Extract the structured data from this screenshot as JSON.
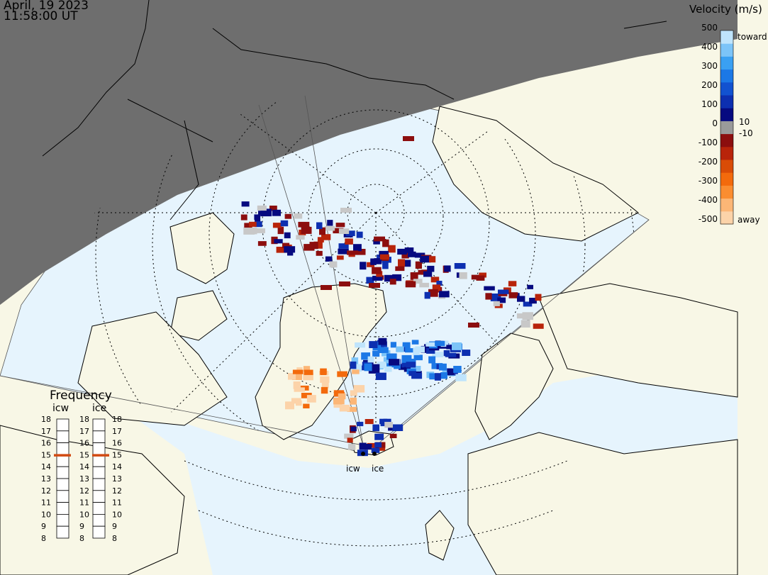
{
  "header": {
    "date": "April, 19 2023",
    "time": "11:58:00 UT"
  },
  "velocity_scale": {
    "title": "Velocity (m/s)",
    "ticks": [
      "500",
      "400",
      "300",
      "200",
      "100",
      "0",
      "-100",
      "-200",
      "-300",
      "-400",
      "-500"
    ],
    "inner_labels": [
      "10",
      "-10"
    ],
    "end_labels": {
      "top": "toward",
      "bottom": "away"
    },
    "colors": [
      "#fcd3a9",
      "#fcb676",
      "#fb8d30",
      "#f36a0c",
      "#d94c06",
      "#b8240a",
      "#8c0e0e",
      "#9a9a9a",
      "#060a80",
      "#0d2fb0",
      "#1252d0",
      "#1c78e6",
      "#3aa0f2",
      "#7cc4f8",
      "#bfe4fc"
    ]
  },
  "frequency_panel": {
    "title": "Frequency",
    "columns": [
      {
        "name": "icw",
        "selected": 15
      },
      {
        "name": "ice",
        "selected": 15
      }
    ],
    "levels": [
      "18",
      "17",
      "16",
      "15",
      "14",
      "13",
      "12",
      "11",
      "10",
      "9",
      "8"
    ]
  },
  "stations": [
    "icw",
    "ice"
  ],
  "colors": {
    "night": "#6e6e6e",
    "land": "#f8f7e6",
    "sea": "#e6f4fd",
    "grid": "#000000",
    "marker": "#d14a12"
  }
}
